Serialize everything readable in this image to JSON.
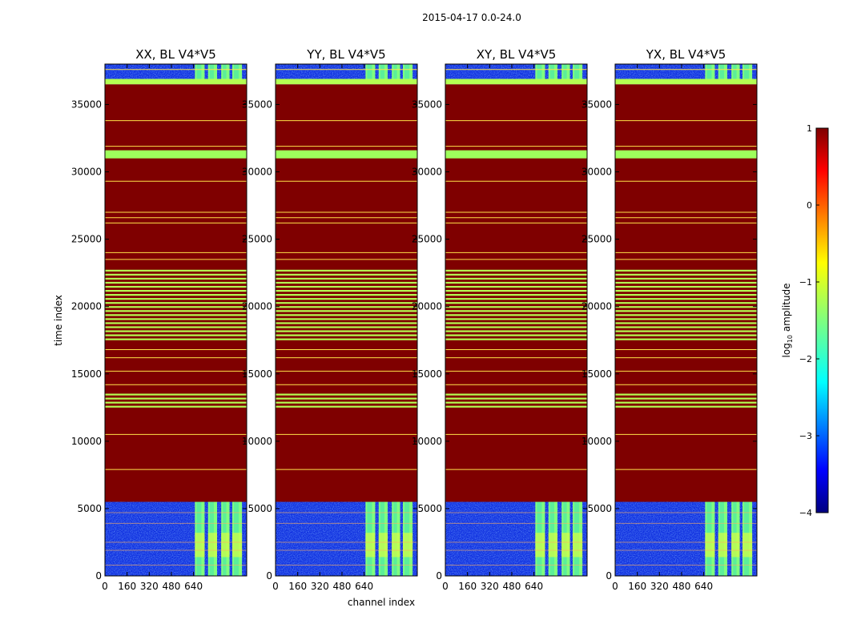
{
  "figure": {
    "suptitle": "2015-04-17 0.0-24.0",
    "ylabel": "time index",
    "xlabel": "channel index",
    "colorbar_label_prefix": "log",
    "colorbar_label_sub": "10",
    "colorbar_label_suffix": " amplitude"
  },
  "chart_data": {
    "type": "heatmap",
    "colormap": "jet",
    "panels": [
      {
        "title": "XX, BL V4*V5"
      },
      {
        "title": "YY, BL V4*V5"
      },
      {
        "title": "XY, BL V4*V5"
      },
      {
        "title": "YX, BL V4*V5"
      }
    ],
    "x_ticks": [
      0,
      160,
      320,
      480,
      640
    ],
    "x_tick_labels": [
      "0",
      "160",
      "320",
      "480",
      "640"
    ],
    "xlim": [
      0,
      1024
    ],
    "y_ticks": [
      0,
      5000,
      10000,
      15000,
      20000,
      25000,
      30000,
      35000
    ],
    "y_tick_labels": [
      "0",
      "5000",
      "10000",
      "15000",
      "20000",
      "25000",
      "30000",
      "35000"
    ],
    "ylim": [
      0,
      38000
    ],
    "colorbar": {
      "vmin": -4,
      "vmax": 1,
      "ticks": [
        1,
        0,
        -1,
        -2,
        -3,
        -4
      ],
      "tick_labels": [
        "1",
        "0",
        "−1",
        "−2",
        "−3",
        "−4"
      ]
    },
    "regions": {
      "low_noise_time": [
        0,
        5500
      ],
      "flagged_time": [
        5500,
        36500
      ],
      "high_noise_time": [
        36500,
        38000
      ],
      "bright_channels": [
        [
          650,
          720
        ],
        [
          745,
          810
        ],
        [
          840,
          900
        ],
        [
          920,
          990
        ]
      ],
      "green_band_time": [
        31000,
        31600
      ],
      "top_band_time": [
        36500,
        36900
      ],
      "dense_band_times": [
        [
          12500,
          13600
        ],
        [
          17500,
          22800
        ]
      ],
      "line_times": [
        7900,
        10500,
        14200,
        15200,
        16200,
        16800,
        23500,
        24000,
        26200,
        26600,
        27000,
        29300,
        31900,
        33800,
        37600
      ]
    }
  }
}
